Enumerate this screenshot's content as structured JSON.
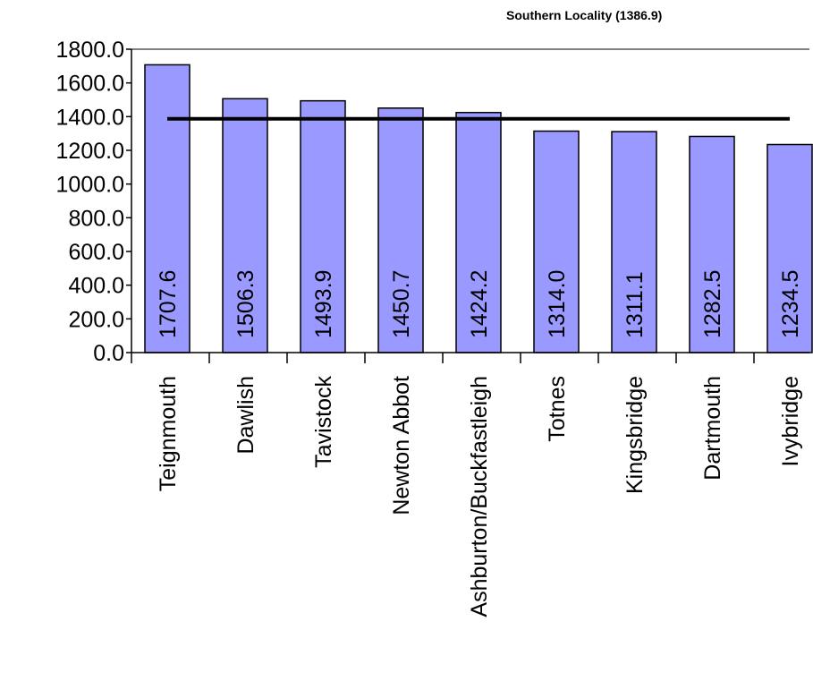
{
  "chart_data": {
    "type": "bar",
    "categories": [
      "Teignmouth",
      "Dawlish",
      "Tavistock",
      "Newton Abbot",
      "Ashburton/Buckfastleigh",
      "Totnes",
      "Kingsbridge",
      "Dartmouth",
      "Ivybridge"
    ],
    "values": [
      1707.6,
      1506.3,
      1493.9,
      1450.7,
      1424.2,
      1314.0,
      1311.1,
      1282.5,
      1234.5
    ],
    "value_labels": [
      "1707.6",
      "1506.3",
      "1493.9",
      "1450.7",
      "1424.2",
      "1314.0",
      "1311.1",
      "1282.5",
      "1234.5"
    ],
    "y_ticks": [
      "0.0",
      "200.0",
      "400.0",
      "600.0",
      "800.0",
      "1000.0",
      "1200.0",
      "1400.0",
      "1600.0",
      "1800.0"
    ],
    "ylim": [
      0,
      1800
    ],
    "reference_line": {
      "label": "Southern Locality (1386.9)",
      "value": 1386.9,
      "color": "#000000"
    },
    "bar_color": "#9999ff",
    "bar_edge_color": "#000000",
    "grid": false,
    "title": "",
    "xlabel": "",
    "ylabel": ""
  }
}
